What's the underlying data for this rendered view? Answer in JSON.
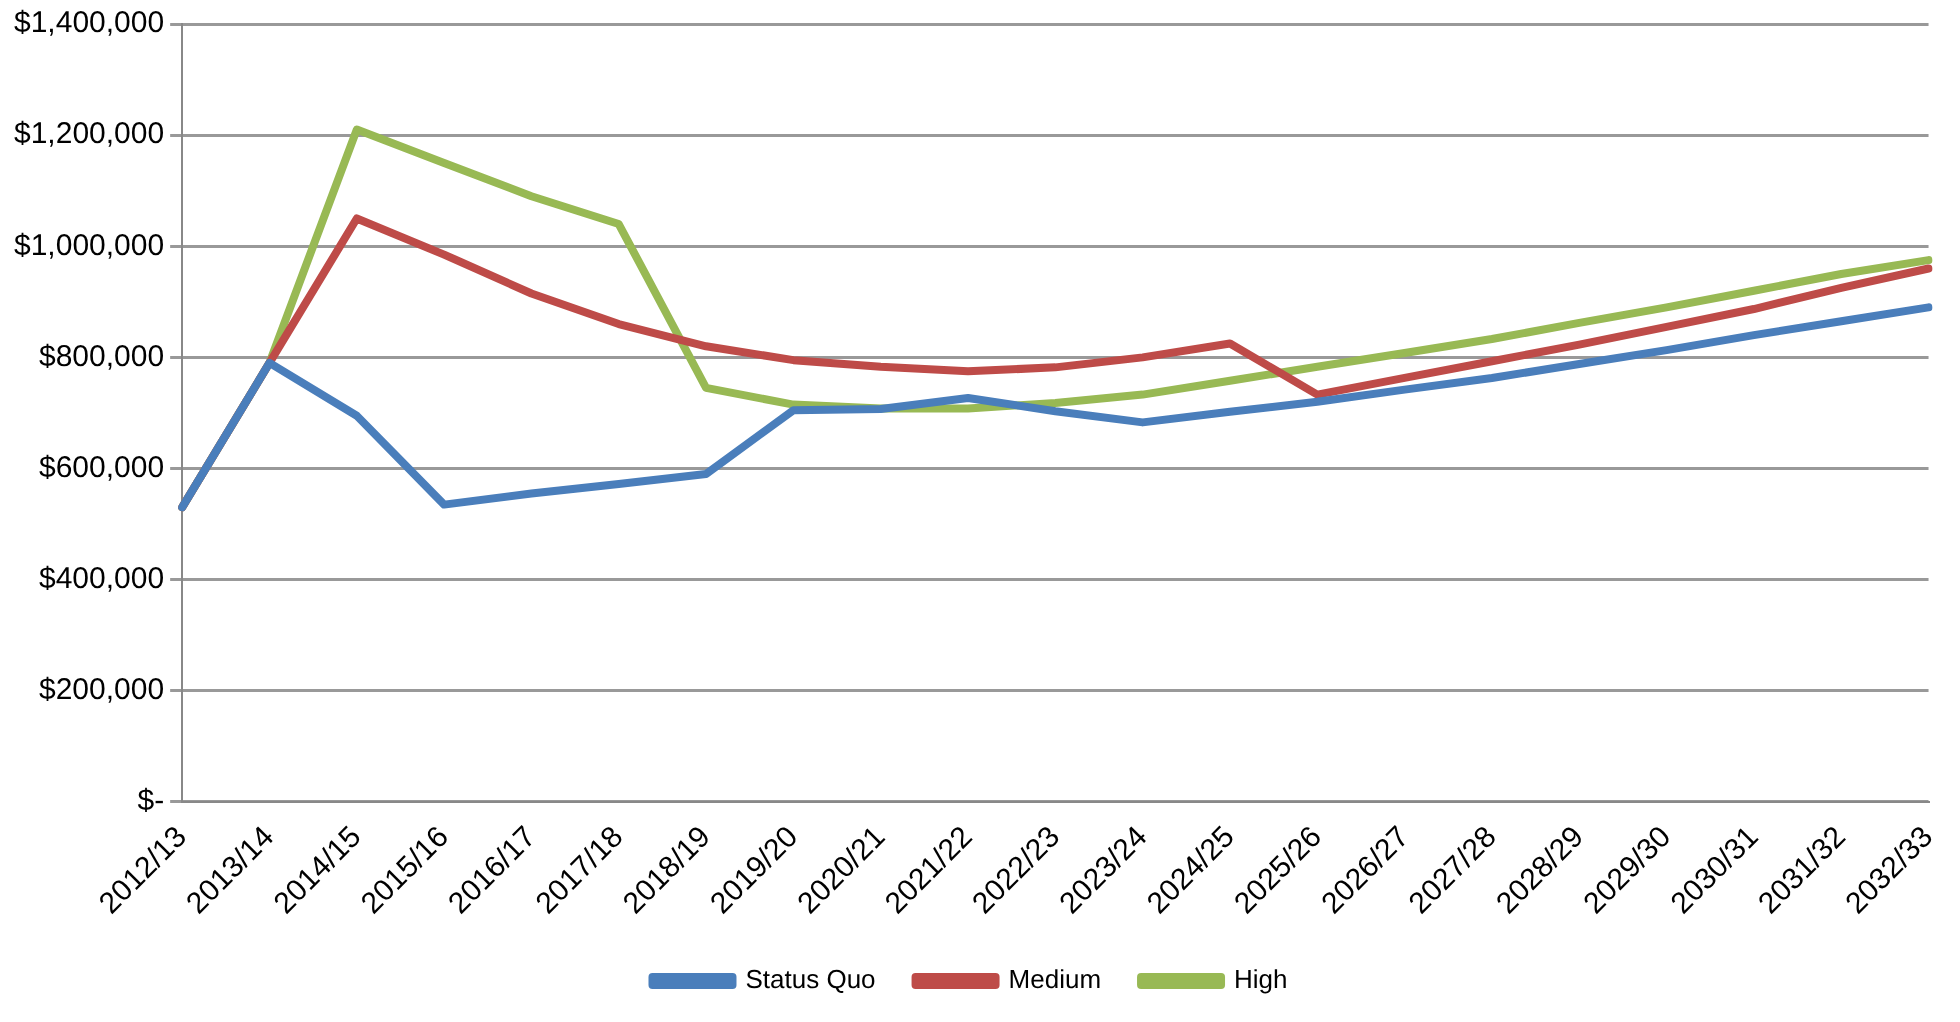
{
  "chart_data": {
    "type": "line",
    "categories": [
      "2012/13",
      "2013/14",
      "2014/15",
      "2015/16",
      "2016/17",
      "2017/18",
      "2018/19",
      "2019/20",
      "2020/21",
      "2021/22",
      "2022/23",
      "2023/24",
      "2024/25",
      "2025/26",
      "2026/27",
      "2027/28",
      "2028/29",
      "2029/30",
      "2030/31",
      "2031/32",
      "2032/33"
    ],
    "series": [
      {
        "name": "Status Quo",
        "color": "#4a7ebb",
        "values": [
          530000,
          790000,
          695000,
          535000,
          555000,
          572000,
          590000,
          705000,
          707000,
          727000,
          703000,
          683000,
          702000,
          720000,
          742000,
          763000,
          788000,
          813000,
          840000,
          865000,
          890000
        ]
      },
      {
        "name": "Medium",
        "color": "#be4b48",
        "values": [
          530000,
          790000,
          1050000,
          985000,
          915000,
          860000,
          820000,
          795000,
          783000,
          775000,
          782000,
          800000,
          825000,
          733000,
          763000,
          793000,
          823000,
          855000,
          887000,
          925000,
          960000
        ]
      },
      {
        "name": "High",
        "color": "#98b954",
        "values": [
          530000,
          790000,
          1210000,
          1150000,
          1090000,
          1040000,
          745000,
          715000,
          708000,
          708000,
          718000,
          733000,
          758000,
          783000,
          808000,
          833000,
          862000,
          890000,
          920000,
          950000,
          975000
        ]
      }
    ],
    "ylim": [
      0,
      1400000
    ],
    "yticks": [
      {
        "value": 0,
        "label": "$-"
      },
      {
        "value": 200000,
        "label": "$200,000"
      },
      {
        "value": 400000,
        "label": "$400,000"
      },
      {
        "value": 600000,
        "label": "$600,000"
      },
      {
        "value": 800000,
        "label": "$800,000"
      },
      {
        "value": 1000000,
        "label": "$1,000,000"
      },
      {
        "value": 1200000,
        "label": "$1,200,000"
      },
      {
        "value": 1400000,
        "label": "$1,400,000"
      }
    ],
    "grid": "y",
    "legend": "bottom",
    "marker": "none",
    "line_style": "solid"
  }
}
